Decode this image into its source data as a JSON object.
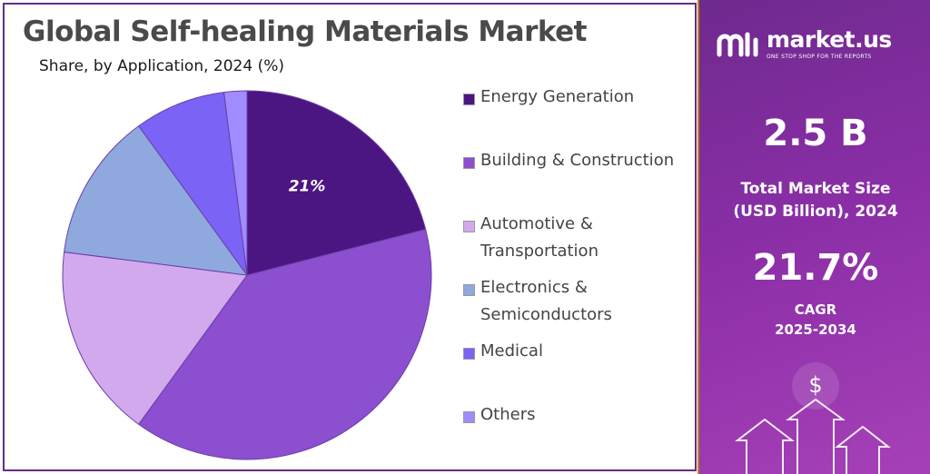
{
  "title": "Global Self-healing Materials Market",
  "subtitle": "Share, by Application, 2024 (%)",
  "chart_data": {
    "type": "pie",
    "categories": [
      "Energy Generation",
      "Building & Construction",
      "Automotive & Transportation",
      "Electronics & Semiconductors",
      "Medical",
      "Others"
    ],
    "values": [
      21,
      39,
      17,
      13,
      8,
      2
    ],
    "colors": [
      "#4b1582",
      "#8b4fd0",
      "#d3a9ee",
      "#8fa9de",
      "#7b63f5",
      "#a08cff"
    ],
    "data_labels": [
      "21%"
    ],
    "legend_position": "right"
  },
  "legend": {
    "items": [
      {
        "label": "Energy Generation",
        "color": "#4b1582"
      },
      {
        "label": "Building & Construction",
        "color": "#8b4fd0"
      },
      {
        "label": "Automotive &\nTransportation",
        "color": "#d3a9ee"
      },
      {
        "label": "Electronics &\nSemiconductors",
        "color": "#8fa9de"
      },
      {
        "label": "Medical",
        "color": "#7b63f5"
      },
      {
        "label": "Others",
        "color": "#a08cff"
      }
    ]
  },
  "brand": {
    "name": "market.us",
    "tagline": "ONE STOP SHOP FOR THE REPORTS"
  },
  "stats": {
    "market_size_value": "2.5 B",
    "market_size_label_line1": "Total Market Size",
    "market_size_label_line2": "(USD Billion), 2024",
    "cagr_value": "21.7%",
    "cagr_label_line1": "CAGR",
    "cagr_label_line2": "2025-2034"
  },
  "decor": {
    "currency_symbol": "$"
  }
}
